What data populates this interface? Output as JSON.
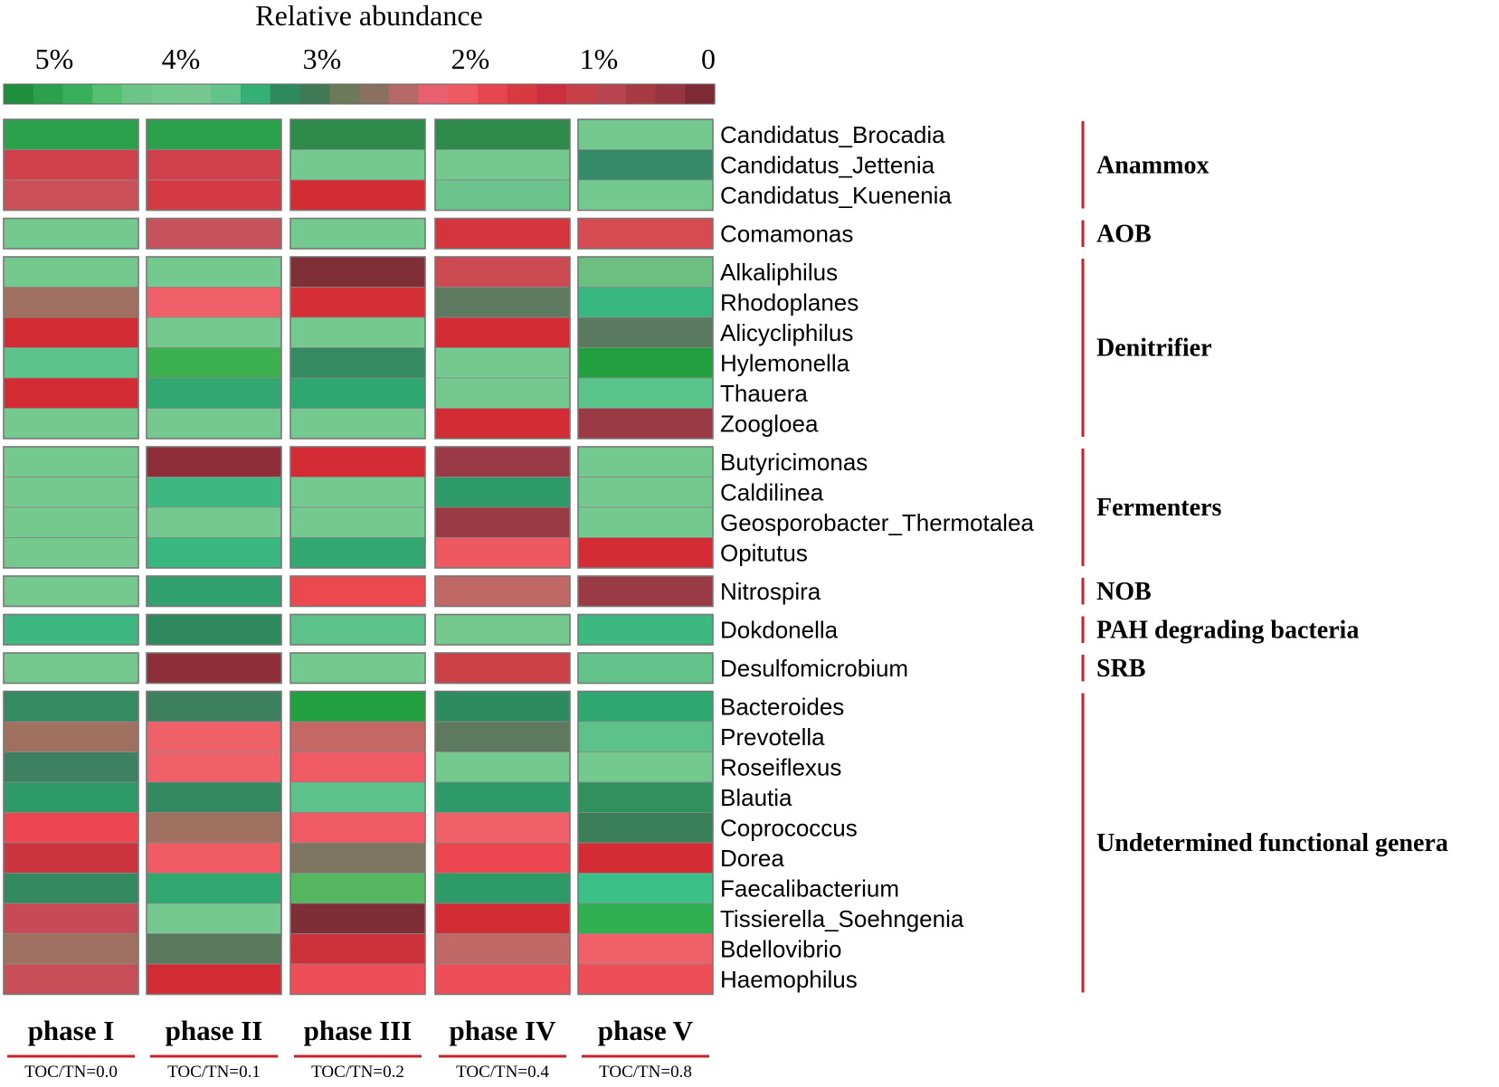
{
  "chart_data": {
    "type": "heatmap",
    "title": "Relative abundance",
    "colorbar": {
      "tick_labels": [
        "5%",
        "4%",
        "3%",
        "2%",
        "1%",
        "0"
      ],
      "range_percent": [
        5,
        0
      ],
      "stops": [
        "#1f8f3e",
        "#2aa14a",
        "#38b05a",
        "#55bf72",
        "#6cc488",
        "#73c98e",
        "#76c790",
        "#62c48a",
        "#35b075",
        "#2e8a5a",
        "#3f7a55",
        "#6c7a5a",
        "#8a7060",
        "#b56a68",
        "#e86070",
        "#ef5a62",
        "#e8464e",
        "#d93a42",
        "#cc3040",
        "#c54048",
        "#b84450",
        "#a83a44",
        "#963440",
        "#7e2a34"
      ]
    },
    "columns": [
      {
        "phase": "phase I",
        "ratio": "TOC/TN=0.0"
      },
      {
        "phase": "phase II",
        "ratio": "TOC/TN=0.1"
      },
      {
        "phase": "phase III",
        "ratio": "TOC/TN=0.2"
      },
      {
        "phase": "phase IV",
        "ratio": "TOC/TN=0.4"
      },
      {
        "phase": "phase V",
        "ratio": "TOC/TN=0.8"
      }
    ],
    "groups": [
      {
        "name": "Anammox",
        "rows": [
          {
            "genus": "Candidatus_Brocadia",
            "colors": [
              "#2aa14a",
              "#2aa14a",
              "#2e8a4a",
              "#2e8a4a",
              "#73c98e"
            ]
          },
          {
            "genus": "Candidatus_Jettenia",
            "colors": [
              "#d0404a",
              "#d0404a",
              "#73c98e",
              "#73c98e",
              "#358a6a"
            ]
          },
          {
            "genus": "Candidatus_Kuenenia",
            "colors": [
              "#cc5058",
              "#d43a44",
              "#d42c34",
              "#6cc48c",
              "#73c98e"
            ]
          }
        ]
      },
      {
        "name": "AOB",
        "rows": [
          {
            "genus": "Comamonas",
            "colors": [
              "#73c98e",
              "#c8525c",
              "#73c98e",
              "#d4343c",
              "#d64a52"
            ]
          }
        ]
      },
      {
        "name": "Denitrifier",
        "rows": [
          {
            "genus": "Alkaliphilus",
            "colors": [
              "#73c98e",
              "#73c98e",
              "#7e3036",
              "#cc4a52",
              "#6cbf80"
            ]
          },
          {
            "genus": "Rhodoplanes",
            "colors": [
              "#a07060",
              "#f06068",
              "#d42e36",
              "#5e7a5e",
              "#38b880"
            ]
          },
          {
            "genus": "Alicycliphilus",
            "colors": [
              "#d42c34",
              "#73c98e",
              "#73c98e",
              "#d42c34",
              "#5a7a60"
            ]
          },
          {
            "genus": "Hylemonella",
            "colors": [
              "#5cc488",
              "#3cb050",
              "#368a62",
              "#73c98e",
              "#22a040"
            ]
          },
          {
            "genus": "Thauera",
            "colors": [
              "#d42c34",
              "#30a870",
              "#2ea870",
              "#73c98e",
              "#5ac48a"
            ]
          },
          {
            "genus": "Zoogloea",
            "colors": [
              "#73c98e",
              "#73c98e",
              "#73c98e",
              "#d42c34",
              "#9a3a44"
            ]
          }
        ]
      },
      {
        "name": "Fermenters",
        "rows": [
          {
            "genus": "Butyricimonas",
            "colors": [
              "#73c98e",
              "#8e2e38",
              "#d42c34",
              "#9a3a46",
              "#73c98e"
            ]
          },
          {
            "genus": "Caldilinea",
            "colors": [
              "#73c98e",
              "#3cb880",
              "#73c98e",
              "#2e9a68",
              "#73c98e"
            ]
          },
          {
            "genus": "Geosporobacter_Thermotalea",
            "colors": [
              "#73c98e",
              "#73c98e",
              "#73c98e",
              "#9a3a44",
              "#73c98e"
            ]
          },
          {
            "genus": "Opitutus",
            "colors": [
              "#73c98e",
              "#38b880",
              "#30a870",
              "#ee5860",
              "#d42c34"
            ]
          }
        ]
      },
      {
        "name": "NOB",
        "rows": [
          {
            "genus": "Nitrospira",
            "colors": [
              "#73c98e",
              "#30a070",
              "#ec4850",
              "#c06866",
              "#9a3a44"
            ]
          }
        ]
      },
      {
        "name": "PAH degrading bacteria",
        "rows": [
          {
            "genus": "Dokdonella",
            "colors": [
              "#3cb880",
              "#2e8a5e",
              "#5cc28a",
              "#73c98e",
              "#3cb880"
            ]
          }
        ]
      },
      {
        "name": "SRB",
        "rows": [
          {
            "genus": "Desulfomicrobium",
            "colors": [
              "#73c98e",
              "#8e2e38",
              "#73c98e",
              "#cc4048",
              "#62c48a"
            ]
          }
        ]
      },
      {
        "name": "Undetermined functional genera",
        "rows": [
          {
            "genus": "Bacteroides",
            "colors": [
              "#348a62",
              "#3c8060",
              "#22a040",
              "#2e8a60",
              "#2ea870"
            ]
          },
          {
            "genus": "Prevotella",
            "colors": [
              "#a07060",
              "#f06068",
              "#c46866",
              "#5e7a5e",
              "#5cc28a"
            ]
          },
          {
            "genus": "Roseiflexus",
            "colors": [
              "#3e8062",
              "#f06068",
              "#f05a64",
              "#73c98e",
              "#73c98e"
            ]
          },
          {
            "genus": "Blautia",
            "colors": [
              "#2e9a68",
              "#348a60",
              "#5cc28a",
              "#2e9a68",
              "#30905e"
            ]
          },
          {
            "genus": "Coprococcus",
            "colors": [
              "#ee4650",
              "#a07060",
              "#f05a64",
              "#f06068",
              "#3a7e58"
            ]
          },
          {
            "genus": "Dorea",
            "colors": [
              "#cc3440",
              "#f05a62",
              "#7e7660",
              "#ec4650",
              "#d42c34"
            ]
          },
          {
            "genus": "Faecalibacterium",
            "colors": [
              "#348a60",
              "#30a870",
              "#55b860",
              "#2e9a68",
              "#3cc08a"
            ]
          },
          {
            "genus": "Tissierella_Soehngenia",
            "colors": [
              "#c84a56",
              "#73c98e",
              "#7e2e36",
              "#d42c34",
              "#30b050"
            ]
          },
          {
            "genus": "Bdellovibrio",
            "colors": [
              "#a07060",
              "#5a7a5e",
              "#cc3038",
              "#c06866",
              "#f06068"
            ]
          },
          {
            "genus": "Haemophilus",
            "colors": [
              "#c84e58",
              "#d42c34",
              "#ee4e58",
              "#ee4e58",
              "#ee4e58"
            ]
          }
        ]
      }
    ]
  }
}
